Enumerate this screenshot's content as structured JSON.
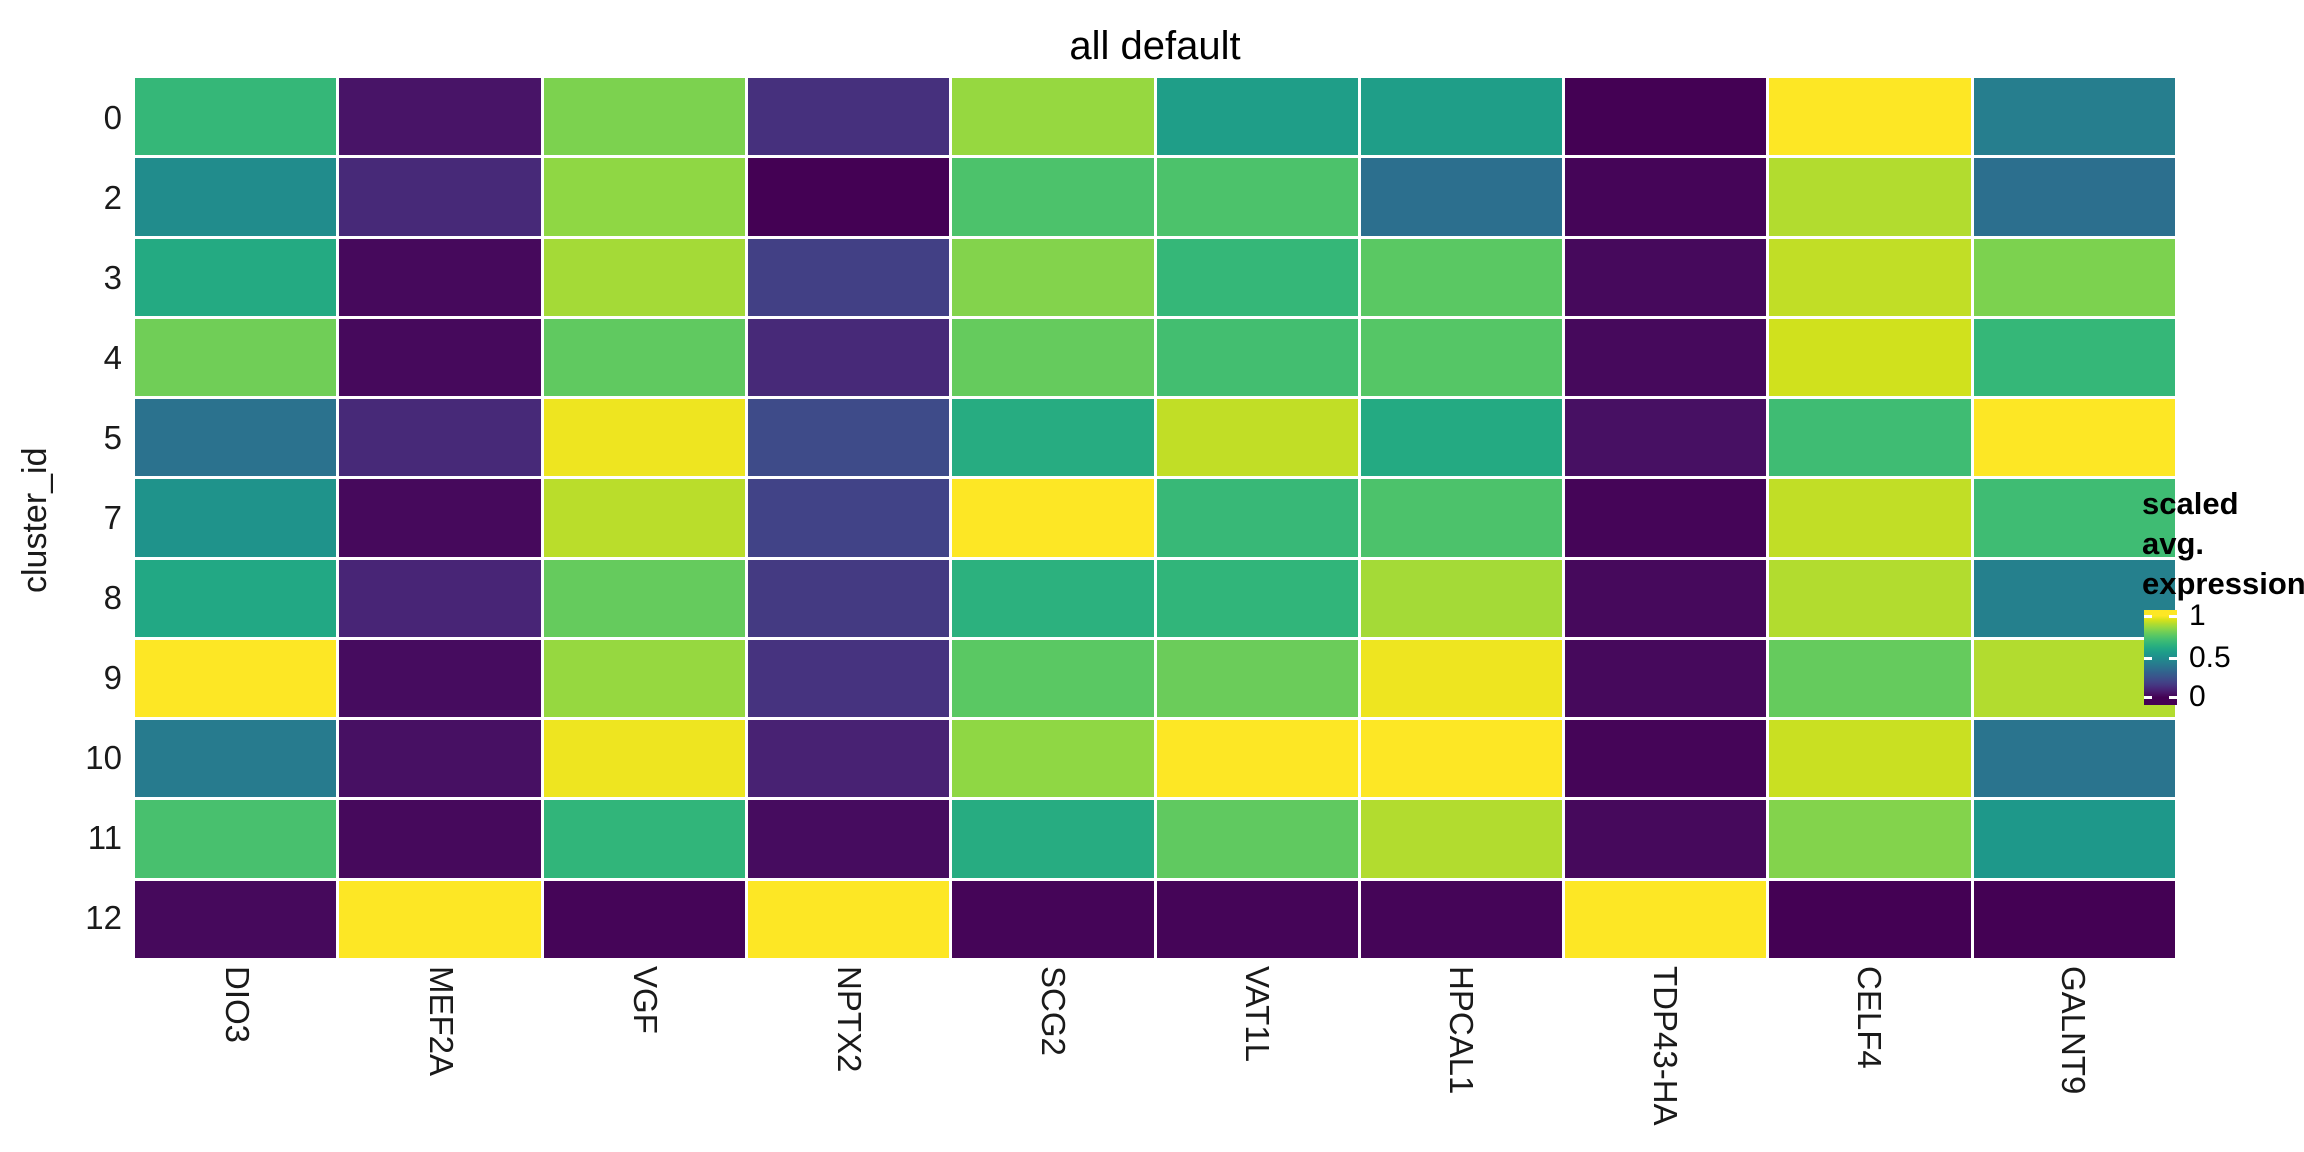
{
  "title": "all default",
  "y_axis": {
    "label": "cluster_id",
    "categories": [
      "0",
      "2",
      "3",
      "4",
      "5",
      "7",
      "8",
      "9",
      "10",
      "11",
      "12"
    ]
  },
  "x_axis": {
    "categories": [
      "DIO3",
      "MEF2A",
      "VGF",
      "NPTX2",
      "SCG2",
      "VAT1L",
      "HPCAL1",
      "TDP43-HA",
      "CELF4",
      "GALNT9"
    ]
  },
  "legend": {
    "title_line1": "scaled avg.",
    "title_line2": "expression",
    "ticks": [
      "1",
      "0.5",
      "0"
    ],
    "tick_positions_pct": [
      6,
      51,
      92
    ],
    "position": "right"
  },
  "colors": {
    "background": "#ffffff",
    "text": "#1a1a1a",
    "grid_gap": "#ffffff",
    "viridis_stops": [
      "#440154",
      "#481467",
      "#482576",
      "#453781",
      "#404688",
      "#3a538b",
      "#33608d",
      "#2d6d8e",
      "#28798e",
      "#23858d",
      "#1f918c",
      "#1e9c89",
      "#22a884",
      "#2eb37c",
      "#3fbc73",
      "#55c666",
      "#70ce57",
      "#8fd744",
      "#b2dc2f",
      "#d8e219",
      "#fde725"
    ]
  },
  "chart_data": {
    "type": "heatmap",
    "title": "all default",
    "xlabel": "",
    "ylabel": "cluster_id",
    "legend_title": "scaled avg. expression",
    "colormap": "viridis",
    "value_range": [
      0,
      1
    ],
    "grid": false,
    "legend_position": "right",
    "x_categories": [
      "DIO3",
      "MEF2A",
      "VGF",
      "NPTX2",
      "SCG2",
      "VAT1L",
      "HPCAL1",
      "TDP43-HA",
      "CELF4",
      "GALNT9"
    ],
    "y_categories": [
      "0",
      "2",
      "3",
      "4",
      "5",
      "7",
      "8",
      "9",
      "10",
      "11",
      "12"
    ],
    "values": [
      [
        0.67,
        0.05,
        0.82,
        0.13,
        0.86,
        0.56,
        0.56,
        0.0,
        1.0,
        0.42
      ],
      [
        0.48,
        0.11,
        0.85,
        0.0,
        0.73,
        0.73,
        0.36,
        0.01,
        0.9,
        0.36
      ],
      [
        0.61,
        0.02,
        0.88,
        0.18,
        0.83,
        0.67,
        0.76,
        0.02,
        0.92,
        0.82
      ],
      [
        0.8,
        0.02,
        0.77,
        0.11,
        0.78,
        0.71,
        0.75,
        0.02,
        0.94,
        0.67
      ],
      [
        0.37,
        0.11,
        0.98,
        0.22,
        0.62,
        0.92,
        0.61,
        0.04,
        0.7,
        1.0
      ],
      [
        0.51,
        0.02,
        0.91,
        0.19,
        1.0,
        0.68,
        0.73,
        0.01,
        0.92,
        0.7
      ],
      [
        0.6,
        0.1,
        0.78,
        0.16,
        0.64,
        0.66,
        0.88,
        0.02,
        0.9,
        0.43
      ],
      [
        1.0,
        0.03,
        0.86,
        0.14,
        0.76,
        0.79,
        0.98,
        0.02,
        0.78,
        0.9
      ],
      [
        0.41,
        0.04,
        0.98,
        0.09,
        0.85,
        1.0,
        1.0,
        0.01,
        0.93,
        0.38
      ],
      [
        0.72,
        0.02,
        0.66,
        0.03,
        0.62,
        0.77,
        0.9,
        0.02,
        0.83,
        0.53
      ],
      [
        0.02,
        1.0,
        0.01,
        1.0,
        0.01,
        0.01,
        0.01,
        1.0,
        0.0,
        0.0
      ]
    ]
  }
}
